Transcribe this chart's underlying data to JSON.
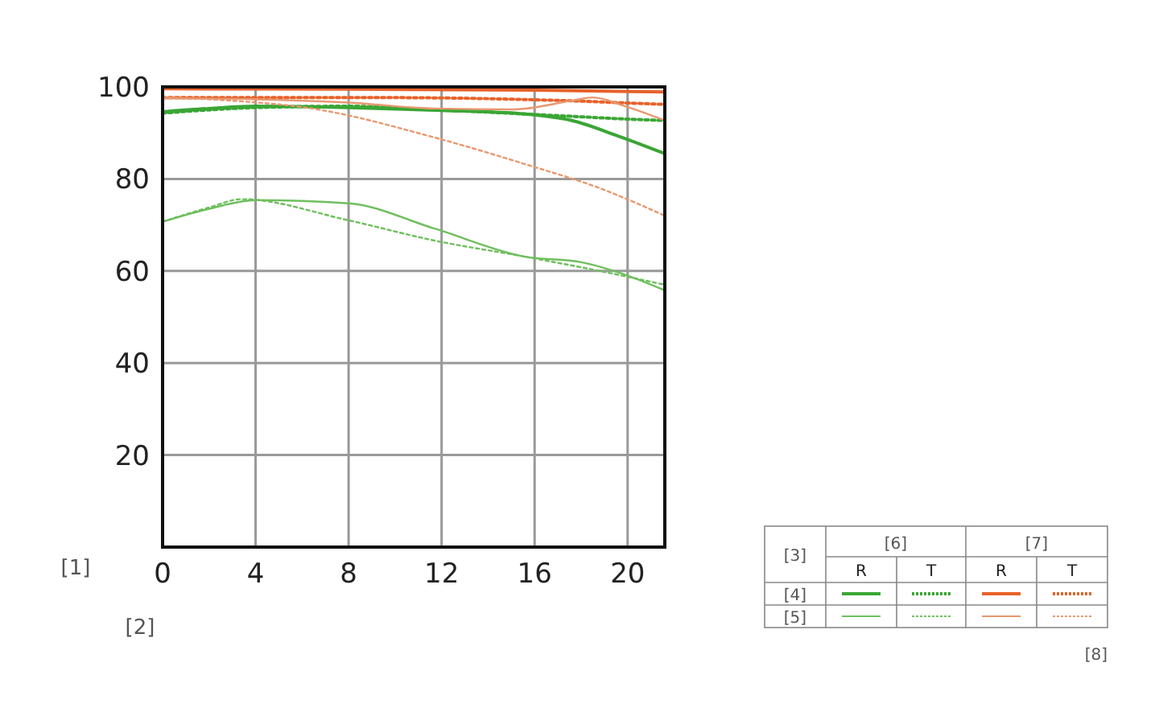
{
  "chart_data": {
    "type": "line",
    "xlim": [
      0,
      21.6
    ],
    "ylim": [
      0,
      100
    ],
    "xticks": [
      0,
      4,
      8,
      12,
      16,
      20
    ],
    "yticks": [
      20,
      40,
      60,
      80,
      100
    ],
    "grid": true,
    "marker": "none",
    "annotations": [
      "[1]",
      "[2]",
      "[3]",
      "[4]",
      "[5]",
      "[6]",
      "[7]",
      "R",
      "T",
      "R",
      "T",
      "[8]"
    ],
    "series": [
      {
        "color": "#3aa635",
        "line_style": "solid",
        "x": [
          0,
          2,
          4,
          8,
          12,
          15.6,
          17.6,
          19.5,
          21.6
        ],
        "values": [
          94.6,
          95.3,
          95.8,
          95.5,
          94.9,
          94.1,
          92.7,
          89.5,
          85.5
        ]
      },
      {
        "color": "#3aa635",
        "line_style": "dotted",
        "x": [
          0,
          4,
          8,
          12,
          16,
          18,
          20,
          21.6
        ],
        "values": [
          94.3,
          95.5,
          95.8,
          95.0,
          94.0,
          93.5,
          93.0,
          92.7
        ]
      },
      {
        "color": "#e8622a",
        "line_style": "solid",
        "x": [
          0,
          8,
          16,
          21.6
        ],
        "values": [
          99.6,
          99.5,
          99.3,
          98.9
        ]
      },
      {
        "color": "#e8622a",
        "line_style": "dotted",
        "x": [
          0,
          8,
          12,
          16,
          18,
          20,
          21.6
        ],
        "values": [
          97.7,
          97.7,
          97.6,
          97.2,
          96.9,
          96.5,
          96.2
        ]
      },
      {
        "color": "#6fbf5e",
        "line_style": "solid",
        "x": [
          0,
          2,
          4,
          8,
          11.7,
          15.6,
          18,
          20,
          21.6
        ],
        "values": [
          70.7,
          73.5,
          75.4,
          74.7,
          69.2,
          63.1,
          61.9,
          59.0,
          55.8
        ]
      },
      {
        "color": "#6fbf5e",
        "line_style": "dotted",
        "x": [
          0,
          2,
          3.4,
          8,
          11.7,
          15.6,
          18.9,
          21.6
        ],
        "values": [
          70.7,
          73.8,
          75.6,
          71.0,
          66.6,
          63.1,
          59.9,
          57.0
        ]
      },
      {
        "color": "#e89870",
        "line_style": "solid",
        "x": [
          0,
          4,
          8,
          11.7,
          15.1,
          17.6,
          18.5,
          20,
          21.6
        ],
        "values": [
          97.5,
          97.3,
          96.6,
          95.3,
          95.1,
          97.0,
          97.7,
          95.6,
          92.7
        ]
      },
      {
        "color": "#e89870",
        "line_style": "dotted",
        "x": [
          0,
          3,
          6.3,
          11.7,
          15.6,
          18.9,
          21.6
        ],
        "values": [
          97.7,
          97.0,
          95.4,
          89.0,
          83.2,
          77.8,
          72.0
        ]
      }
    ]
  }
}
